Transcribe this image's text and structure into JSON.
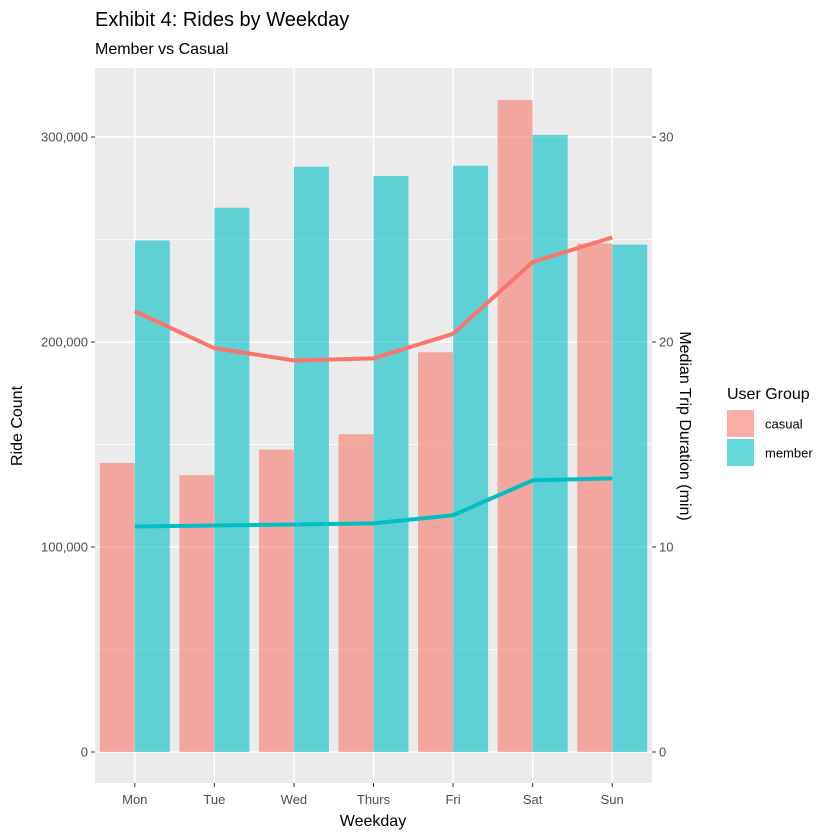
{
  "chart_data": {
    "type": "bar",
    "title": "Exhibit 4: Rides by Weekday",
    "subtitle": "Member vs Casual",
    "xlabel": "Weekday",
    "ylabel": "Ride Count",
    "y2label": "Median Trip Duration (min)",
    "categories": [
      "Mon",
      "Tue",
      "Wed",
      "Thurs",
      "Fri",
      "Sat",
      "Sun"
    ],
    "ylim": [
      0,
      330000
    ],
    "yticks": [
      0,
      100000,
      200000,
      300000
    ],
    "ytick_labels": [
      "0",
      "100,000",
      "200,000",
      "300,000"
    ],
    "y2lim": [
      0,
      33
    ],
    "y2ticks": [
      0,
      10,
      20,
      30
    ],
    "y2tick_labels": [
      "0",
      "10",
      "20",
      "30"
    ],
    "grid": true,
    "legend": {
      "title": "User Group",
      "placement": "right",
      "entries": [
        "casual",
        "member"
      ]
    },
    "series": [
      {
        "name": "casual",
        "kind": "bar",
        "color": "#F8766D",
        "values": [
          141000,
          135000,
          147500,
          155000,
          195000,
          318000,
          248000
        ]
      },
      {
        "name": "member",
        "kind": "bar",
        "color": "#00BFC4",
        "values": [
          249500,
          265500,
          285500,
          281000,
          286000,
          301000,
          247500
        ]
      }
    ],
    "line_series": [
      {
        "name": "casual",
        "kind": "line",
        "axis": "right",
        "color": "#F8766D",
        "values": [
          21.5,
          19.7,
          19.1,
          19.2,
          20.4,
          23.9,
          25.1
        ]
      },
      {
        "name": "member",
        "kind": "line",
        "axis": "right",
        "color": "#00BFC4",
        "values": [
          11.0,
          11.05,
          11.1,
          11.15,
          11.55,
          13.25,
          13.35
        ]
      }
    ]
  },
  "colors": {
    "panel_background": "#EBEBEB",
    "grid_major": "#FFFFFF",
    "tick_text": "#4D4D4D"
  }
}
